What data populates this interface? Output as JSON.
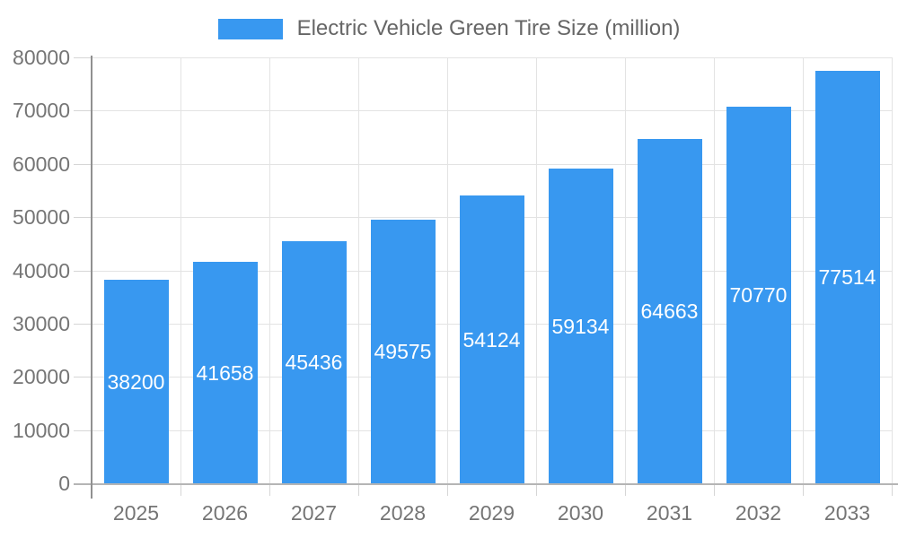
{
  "legend": {
    "label": "Electric Vehicle Green Tire Size (million)"
  },
  "chart_data": {
    "type": "bar",
    "title": "",
    "series_name": "Electric Vehicle Green Tire Size (million)",
    "categories": [
      "2025",
      "2026",
      "2027",
      "2028",
      "2029",
      "2030",
      "2031",
      "2032",
      "2033"
    ],
    "values": [
      38200,
      41658,
      45436,
      49575,
      54124,
      59134,
      64663,
      70770,
      77514
    ],
    "bar_value_labels": [
      "38200",
      "41658",
      "45436",
      "49575",
      "54124",
      "59134",
      "64663",
      "70770",
      "77514"
    ],
    "y_tick_labels": [
      "0",
      "10000",
      "20000",
      "30000",
      "40000",
      "50000",
      "60000",
      "70000",
      "80000"
    ],
    "ylim": [
      0,
      80000
    ],
    "ytick_step": 10000,
    "grid": true,
    "legend_position": "top",
    "xlabel": "",
    "ylabel": ""
  },
  "colors": {
    "bar": "#3898f0",
    "grid": "#e3e3e3",
    "x_axis": "#b5b5b5",
    "y_axis": "#909090",
    "x_tick": "#d6d6d6",
    "y_tick": "#d6d6d6",
    "tick_text": "#757575",
    "legend_text": "#666666",
    "bar_label_text": "#ffffff",
    "background": "#ffffff"
  }
}
